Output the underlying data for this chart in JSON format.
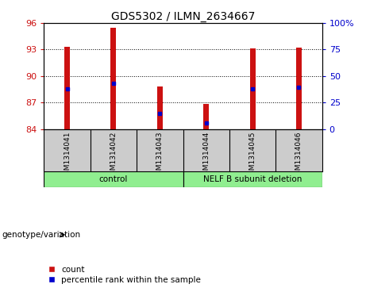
{
  "title": "GDS5302 / ILMN_2634667",
  "samples": [
    "GSM1314041",
    "GSM1314042",
    "GSM1314043",
    "GSM1314044",
    "GSM1314045",
    "GSM1314046"
  ],
  "bar_values": [
    93.3,
    95.5,
    88.8,
    86.8,
    93.1,
    93.2
  ],
  "percentile_values": [
    88.5,
    89.2,
    85.8,
    84.65,
    88.5,
    88.7
  ],
  "ymin": 84,
  "ymax": 96,
  "yticks_left": [
    84,
    87,
    90,
    93,
    96
  ],
  "yticks_right": [
    0,
    25,
    50,
    75,
    100
  ],
  "bar_color": "#cc1111",
  "percentile_color": "#0000cc",
  "sample_box_color": "#cccccc",
  "group_color": "#90EE90",
  "genotype_label": "genotype/variation",
  "legend_count": "count",
  "legend_percentile": "percentile rank within the sample",
  "title_fontsize": 10,
  "tick_fontsize": 8,
  "bar_width": 0.12
}
